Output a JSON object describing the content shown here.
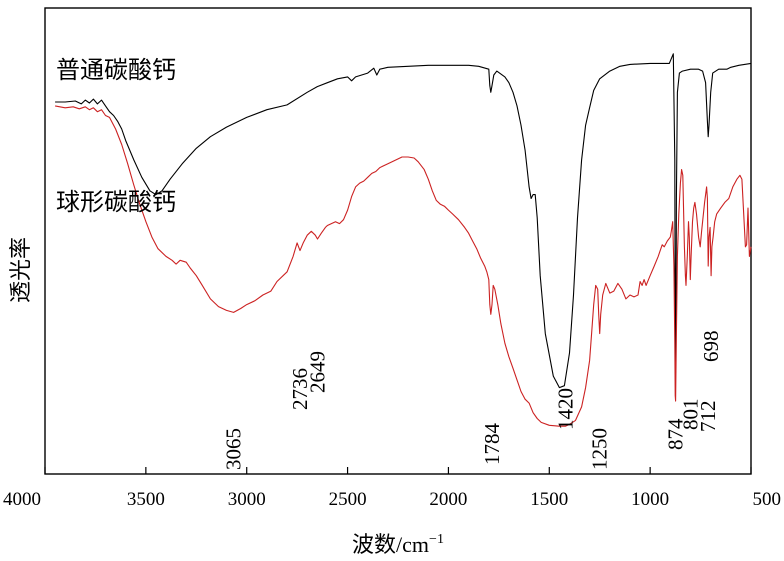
{
  "chart_data": {
    "type": "line",
    "title": "",
    "xlabel_main": "波数/cm",
    "xlabel_sup": "−1",
    "ylabel": "透光率",
    "xlim": [
      4000,
      500
    ],
    "x_ticks": [
      "4000",
      "3500",
      "3000",
      "2500",
      "2000",
      "1500",
      "1000",
      "500"
    ],
    "grid": false,
    "series": [
      {
        "name": "普通碳酸钙",
        "color": "#000000",
        "points": [
          [
            3950,
            1.0
          ],
          [
            3900,
            1.0
          ],
          [
            3850,
            1.005
          ],
          [
            3820,
            0.99
          ],
          [
            3800,
            1.01
          ],
          [
            3780,
            0.995
          ],
          [
            3760,
            1.015
          ],
          [
            3740,
            0.99
          ],
          [
            3720,
            1.01
          ],
          [
            3700,
            0.98
          ],
          [
            3680,
            0.95
          ],
          [
            3660,
            0.93
          ],
          [
            3640,
            0.9
          ],
          [
            3620,
            0.86
          ],
          [
            3600,
            0.8
          ],
          [
            3560,
            0.7
          ],
          [
            3520,
            0.61
          ],
          [
            3480,
            0.54
          ],
          [
            3450,
            0.52
          ],
          [
            3420,
            0.54
          ],
          [
            3380,
            0.6
          ],
          [
            3320,
            0.68
          ],
          [
            3250,
            0.76
          ],
          [
            3180,
            0.82
          ],
          [
            3100,
            0.87
          ],
          [
            3000,
            0.92
          ],
          [
            2900,
            0.96
          ],
          [
            2800,
            0.985
          ],
          [
            2700,
            1.05
          ],
          [
            2650,
            1.08
          ],
          [
            2600,
            1.1
          ],
          [
            2550,
            1.12
          ],
          [
            2500,
            1.13
          ],
          [
            2480,
            1.11
          ],
          [
            2460,
            1.13
          ],
          [
            2400,
            1.15
          ],
          [
            2370,
            1.175
          ],
          [
            2355,
            1.14
          ],
          [
            2340,
            1.17
          ],
          [
            2300,
            1.18
          ],
          [
            2200,
            1.185
          ],
          [
            2100,
            1.19
          ],
          [
            2000,
            1.19
          ],
          [
            1900,
            1.19
          ],
          [
            1850,
            1.185
          ],
          [
            1800,
            1.17
          ],
          [
            1795,
            1.085
          ],
          [
            1790,
            1.05
          ],
          [
            1784,
            1.085
          ],
          [
            1775,
            1.14
          ],
          [
            1760,
            1.16
          ],
          [
            1720,
            1.13
          ],
          [
            1700,
            1.1
          ],
          [
            1680,
            1.05
          ],
          [
            1660,
            0.98
          ],
          [
            1640,
            0.88
          ],
          [
            1620,
            0.75
          ],
          [
            1600,
            0.56
          ],
          [
            1590,
            0.5
          ],
          [
            1580,
            0.52
          ],
          [
            1570,
            0.52
          ],
          [
            1560,
            0.4
          ],
          [
            1545,
            0.1
          ],
          [
            1520,
            -0.2
          ],
          [
            1480,
            -0.42
          ],
          [
            1450,
            -0.48
          ],
          [
            1425,
            -0.47
          ],
          [
            1400,
            -0.3
          ],
          [
            1380,
            0.0
          ],
          [
            1360,
            0.4
          ],
          [
            1340,
            0.7
          ],
          [
            1320,
            0.88
          ],
          [
            1300,
            0.97
          ],
          [
            1280,
            1.06
          ],
          [
            1250,
            1.12
          ],
          [
            1200,
            1.16
          ],
          [
            1150,
            1.185
          ],
          [
            1100,
            1.195
          ],
          [
            1000,
            1.2
          ],
          [
            950,
            1.2
          ],
          [
            905,
            1.2
          ],
          [
            885,
            1.25
          ],
          [
            878,
            0.7
          ],
          [
            876,
            -0.2
          ],
          [
            873,
            -0.4
          ],
          [
            870,
            0.5
          ],
          [
            865,
            1.05
          ],
          [
            855,
            1.15
          ],
          [
            840,
            1.16
          ],
          [
            800,
            1.17
          ],
          [
            760,
            1.17
          ],
          [
            740,
            1.16
          ],
          [
            725,
            1.1
          ],
          [
            716,
            0.9
          ],
          [
            712,
            0.82
          ],
          [
            708,
            0.88
          ],
          [
            700,
            1.05
          ],
          [
            690,
            1.15
          ],
          [
            660,
            1.17
          ],
          [
            620,
            1.17
          ],
          [
            600,
            1.18
          ],
          [
            560,
            1.19
          ],
          [
            500,
            1.2
          ]
        ]
      },
      {
        "name": "球形碳酸钙",
        "color": "#cc2222",
        "points": [
          [
            3950,
            0.98
          ],
          [
            3900,
            0.97
          ],
          [
            3860,
            0.975
          ],
          [
            3830,
            0.965
          ],
          [
            3800,
            0.975
          ],
          [
            3780,
            0.96
          ],
          [
            3760,
            0.97
          ],
          [
            3740,
            0.95
          ],
          [
            3720,
            0.96
          ],
          [
            3700,
            0.93
          ],
          [
            3680,
            0.92
          ],
          [
            3650,
            0.86
          ],
          [
            3620,
            0.78
          ],
          [
            3590,
            0.68
          ],
          [
            3560,
            0.57
          ],
          [
            3530,
            0.47
          ],
          [
            3500,
            0.38
          ],
          [
            3470,
            0.3
          ],
          [
            3440,
            0.24
          ],
          [
            3400,
            0.2
          ],
          [
            3370,
            0.18
          ],
          [
            3350,
            0.16
          ],
          [
            3330,
            0.18
          ],
          [
            3300,
            0.17
          ],
          [
            3280,
            0.14
          ],
          [
            3250,
            0.1
          ],
          [
            3220,
            0.05
          ],
          [
            3180,
            -0.02
          ],
          [
            3140,
            -0.06
          ],
          [
            3100,
            -0.08
          ],
          [
            3065,
            -0.09
          ],
          [
            3030,
            -0.07
          ],
          [
            3000,
            -0.05
          ],
          [
            2960,
            -0.03
          ],
          [
            2920,
            0.0
          ],
          [
            2880,
            0.02
          ],
          [
            2850,
            0.07
          ],
          [
            2800,
            0.12
          ],
          [
            2770,
            0.2
          ],
          [
            2750,
            0.27
          ],
          [
            2736,
            0.23
          ],
          [
            2720,
            0.27
          ],
          [
            2700,
            0.31
          ],
          [
            2680,
            0.33
          ],
          [
            2660,
            0.31
          ],
          [
            2649,
            0.29
          ],
          [
            2630,
            0.32
          ],
          [
            2610,
            0.35
          ],
          [
            2600,
            0.36
          ],
          [
            2580,
            0.37
          ],
          [
            2560,
            0.38
          ],
          [
            2540,
            0.37
          ],
          [
            2520,
            0.39
          ],
          [
            2500,
            0.44
          ],
          [
            2480,
            0.51
          ],
          [
            2460,
            0.56
          ],
          [
            2440,
            0.58
          ],
          [
            2420,
            0.59
          ],
          [
            2400,
            0.61
          ],
          [
            2380,
            0.63
          ],
          [
            2360,
            0.64
          ],
          [
            2340,
            0.66
          ],
          [
            2300,
            0.68
          ],
          [
            2260,
            0.7
          ],
          [
            2230,
            0.715
          ],
          [
            2200,
            0.715
          ],
          [
            2170,
            0.71
          ],
          [
            2150,
            0.69
          ],
          [
            2120,
            0.65
          ],
          [
            2100,
            0.6
          ],
          [
            2080,
            0.54
          ],
          [
            2060,
            0.49
          ],
          [
            2040,
            0.47
          ],
          [
            2020,
            0.46
          ],
          [
            2000,
            0.44
          ],
          [
            1980,
            0.42
          ],
          [
            1950,
            0.39
          ],
          [
            1920,
            0.35
          ],
          [
            1900,
            0.32
          ],
          [
            1880,
            0.28
          ],
          [
            1860,
            0.24
          ],
          [
            1840,
            0.19
          ],
          [
            1820,
            0.15
          ],
          [
            1810,
            0.12
          ],
          [
            1800,
            0.08
          ],
          [
            1795,
            -0.05
          ],
          [
            1790,
            -0.1
          ],
          [
            1784,
            -0.05
          ],
          [
            1778,
            0.05
          ],
          [
            1770,
            0.03
          ],
          [
            1755,
            -0.05
          ],
          [
            1740,
            -0.15
          ],
          [
            1720,
            -0.25
          ],
          [
            1700,
            -0.32
          ],
          [
            1680,
            -0.38
          ],
          [
            1660,
            -0.44
          ],
          [
            1640,
            -0.5
          ],
          [
            1620,
            -0.54
          ],
          [
            1600,
            -0.56
          ],
          [
            1580,
            -0.61
          ],
          [
            1560,
            -0.64
          ],
          [
            1540,
            -0.66
          ],
          [
            1500,
            -0.675
          ],
          [
            1450,
            -0.68
          ],
          [
            1420,
            -0.68
          ],
          [
            1400,
            -0.67
          ],
          [
            1370,
            -0.65
          ],
          [
            1340,
            -0.58
          ],
          [
            1320,
            -0.48
          ],
          [
            1300,
            -0.34
          ],
          [
            1290,
            -0.2
          ],
          [
            1280,
            -0.05
          ],
          [
            1270,
            0.05
          ],
          [
            1260,
            0.03
          ],
          [
            1255,
            -0.1
          ],
          [
            1250,
            -0.2
          ],
          [
            1245,
            -0.1
          ],
          [
            1235,
            0.0
          ],
          [
            1220,
            0.06
          ],
          [
            1200,
            0.01
          ],
          [
            1180,
            0.02
          ],
          [
            1160,
            0.06
          ],
          [
            1140,
            0.03
          ],
          [
            1120,
            -0.02
          ],
          [
            1100,
            0.0
          ],
          [
            1080,
            -0.01
          ],
          [
            1060,
            0.0
          ],
          [
            1050,
            0.07
          ],
          [
            1040,
            0.05
          ],
          [
            1030,
            0.08
          ],
          [
            1020,
            0.05
          ],
          [
            1000,
            0.1
          ],
          [
            980,
            0.15
          ],
          [
            960,
            0.2
          ],
          [
            950,
            0.23
          ],
          [
            940,
            0.26
          ],
          [
            930,
            0.25
          ],
          [
            915,
            0.28
          ],
          [
            900,
            0.3
          ],
          [
            895,
            0.33
          ],
          [
            888,
            0.38
          ],
          [
            882,
            0.15
          ],
          [
            878,
            -0.25
          ],
          [
            876,
            -0.52
          ],
          [
            874,
            -0.55
          ],
          [
            870,
            -0.2
          ],
          [
            865,
            0.2
          ],
          [
            858,
            0.42
          ],
          [
            850,
            0.58
          ],
          [
            844,
            0.65
          ],
          [
            838,
            0.62
          ],
          [
            830,
            0.25
          ],
          [
            825,
            0.1
          ],
          [
            822,
            0.05
          ],
          [
            816,
            0.2
          ],
          [
            810,
            0.38
          ],
          [
            806,
            0.3
          ],
          [
            801,
            0.08
          ],
          [
            797,
            0.2
          ],
          [
            790,
            0.38
          ],
          [
            784,
            0.45
          ],
          [
            778,
            0.48
          ],
          [
            770,
            0.42
          ],
          [
            760,
            0.3
          ],
          [
            752,
            0.25
          ],
          [
            745,
            0.33
          ],
          [
            738,
            0.4
          ],
          [
            730,
            0.48
          ],
          [
            720,
            0.56
          ],
          [
            716,
            0.5
          ],
          [
            712,
            0.15
          ],
          [
            708,
            0.3
          ],
          [
            703,
            0.35
          ],
          [
            698,
            0.1
          ],
          [
            694,
            0.25
          ],
          [
            688,
            0.3
          ],
          [
            680,
            0.38
          ],
          [
            670,
            0.42
          ],
          [
            650,
            0.45
          ],
          [
            630,
            0.48
          ],
          [
            610,
            0.5
          ],
          [
            590,
            0.56
          ],
          [
            570,
            0.6
          ],
          [
            555,
            0.62
          ],
          [
            545,
            0.6
          ],
          [
            535,
            0.4
          ],
          [
            528,
            0.25
          ],
          [
            522,
            0.26
          ],
          [
            515,
            0.45
          ],
          [
            508,
            0.2
          ],
          [
            500,
            0.25
          ]
        ]
      }
    ],
    "peak_labels": [
      {
        "x": 3065,
        "text": "3065"
      },
      {
        "x": 2736,
        "text": "2736"
      },
      {
        "x": 2649,
        "text": "2649"
      },
      {
        "x": 1784,
        "text": "1784"
      },
      {
        "x": 1420,
        "text": "1420"
      },
      {
        "x": 1250,
        "text": "1250"
      },
      {
        "x": 874,
        "text": "874"
      },
      {
        "x": 801,
        "text": "801"
      },
      {
        "x": 712,
        "text": "712"
      },
      {
        "x": 698,
        "text": "698"
      }
    ]
  }
}
